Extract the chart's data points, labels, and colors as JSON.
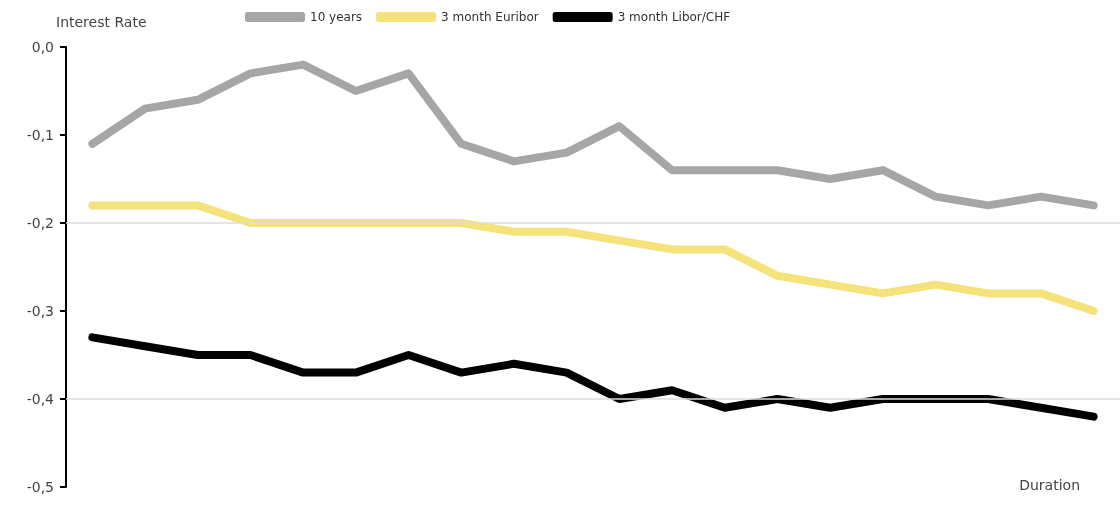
{
  "chart_data": {
    "type": "line",
    "ylabel": "Interest Rate",
    "xlabel": "Duration",
    "categories": [
      null,
      null,
      null,
      null,
      null,
      null,
      null,
      null,
      null,
      null,
      null,
      null,
      null,
      null,
      null,
      null,
      null,
      null,
      null,
      null
    ],
    "series": [
      {
        "name": "10 years",
        "color": "#a6a6a6",
        "values": [
          -0.11,
          -0.07,
          -0.06,
          -0.03,
          -0.02,
          -0.05,
          -0.03,
          -0.11,
          -0.13,
          -0.12,
          -0.09,
          -0.14,
          -0.14,
          -0.14,
          -0.15,
          -0.14,
          -0.17,
          -0.18,
          -0.17,
          -0.18
        ]
      },
      {
        "name": "3 month Euribor",
        "color": "#f5e27a",
        "values": [
          -0.18,
          -0.18,
          -0.18,
          -0.2,
          -0.2,
          -0.2,
          -0.2,
          -0.2,
          -0.21,
          -0.21,
          -0.22,
          -0.23,
          -0.23,
          -0.26,
          -0.27,
          -0.28,
          -0.27,
          -0.28,
          -0.28,
          -0.3
        ]
      },
      {
        "name": "3 month Libor/CHF",
        "color": "#000000",
        "values": [
          -0.33,
          -0.34,
          -0.35,
          -0.35,
          -0.37,
          -0.37,
          -0.35,
          -0.37,
          -0.36,
          -0.37,
          -0.4,
          -0.39,
          -0.41,
          -0.4,
          -0.41,
          -0.4,
          -0.4,
          -0.4,
          -0.41,
          -0.42
        ]
      }
    ],
    "ylim": [
      -0.5,
      0
    ],
    "yticks": [
      {
        "value": -0.5,
        "label": "-0,5"
      },
      {
        "value": -0.4,
        "label": "-0,4"
      },
      {
        "value": -0.3,
        "label": "-0,3"
      },
      {
        "value": -0.2,
        "label": "-0,2"
      },
      {
        "value": -0.1,
        "label": "-0,1"
      },
      {
        "value": 0,
        "label": "0,0"
      }
    ],
    "ref_lines": [
      {
        "axis": "y",
        "value": -0.2,
        "color": "#dddddd"
      },
      {
        "axis": "y",
        "value": -0.4,
        "color": "#dddddd"
      }
    ],
    "grid": false,
    "legend": "top",
    "marker": "none",
    "line_style": "solid",
    "tick_labels": "y"
  }
}
